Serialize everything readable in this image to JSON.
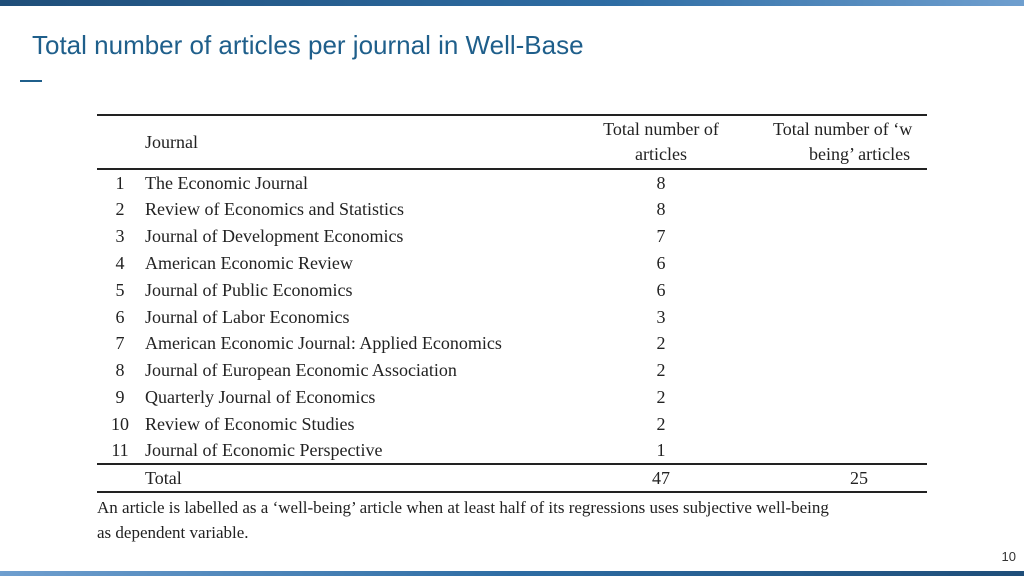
{
  "slide": {
    "title": "Total number of articles per journal in Well-Base",
    "page_number": "10"
  },
  "table": {
    "headers": {
      "num": "",
      "journal": "Journal",
      "total": "Total number of articles",
      "total_line1": "Total number of",
      "total_line2": "articles",
      "wb_line1": "Total number of ‘w",
      "wb_line2": "being’ articles"
    },
    "rows": [
      {
        "num": "1",
        "journal": "The Economic Journal",
        "total": "8",
        "wb": ""
      },
      {
        "num": "2",
        "journal": "Review of Economics and Statistics",
        "total": "8",
        "wb": ""
      },
      {
        "num": "3",
        "journal": "Journal of Development Economics",
        "total": "7",
        "wb": ""
      },
      {
        "num": "4",
        "journal": "American Economic Review",
        "total": "6",
        "wb": ""
      },
      {
        "num": "5",
        "journal": "Journal of Public Economics",
        "total": "6",
        "wb": ""
      },
      {
        "num": "6",
        "journal": "Journal of Labor Economics",
        "total": "3",
        "wb": ""
      },
      {
        "num": "7",
        "journal": "American Economic Journal: Applied Economics",
        "total": "2",
        "wb": ""
      },
      {
        "num": "8",
        "journal": "Journal of European Economic Association",
        "total": "2",
        "wb": ""
      },
      {
        "num": "9",
        "journal": "Quarterly Journal of Economics",
        "total": "2",
        "wb": ""
      },
      {
        "num": "10",
        "journal": "Review of Economic Studies",
        "total": "2",
        "wb": ""
      },
      {
        "num": "11",
        "journal": "Journal of Economic Perspective",
        "total": "1",
        "wb": ""
      }
    ],
    "total_row": {
      "label": "Total",
      "total": "47",
      "wb": "25"
    }
  },
  "note": {
    "line1": "An article is labelled as a ‘well-being’ article when at least half of its regressions uses subjective well-being",
    "line2": "as dependent variable."
  },
  "colors": {
    "title": "#1f5f8b",
    "bar": "#2e6da4"
  }
}
